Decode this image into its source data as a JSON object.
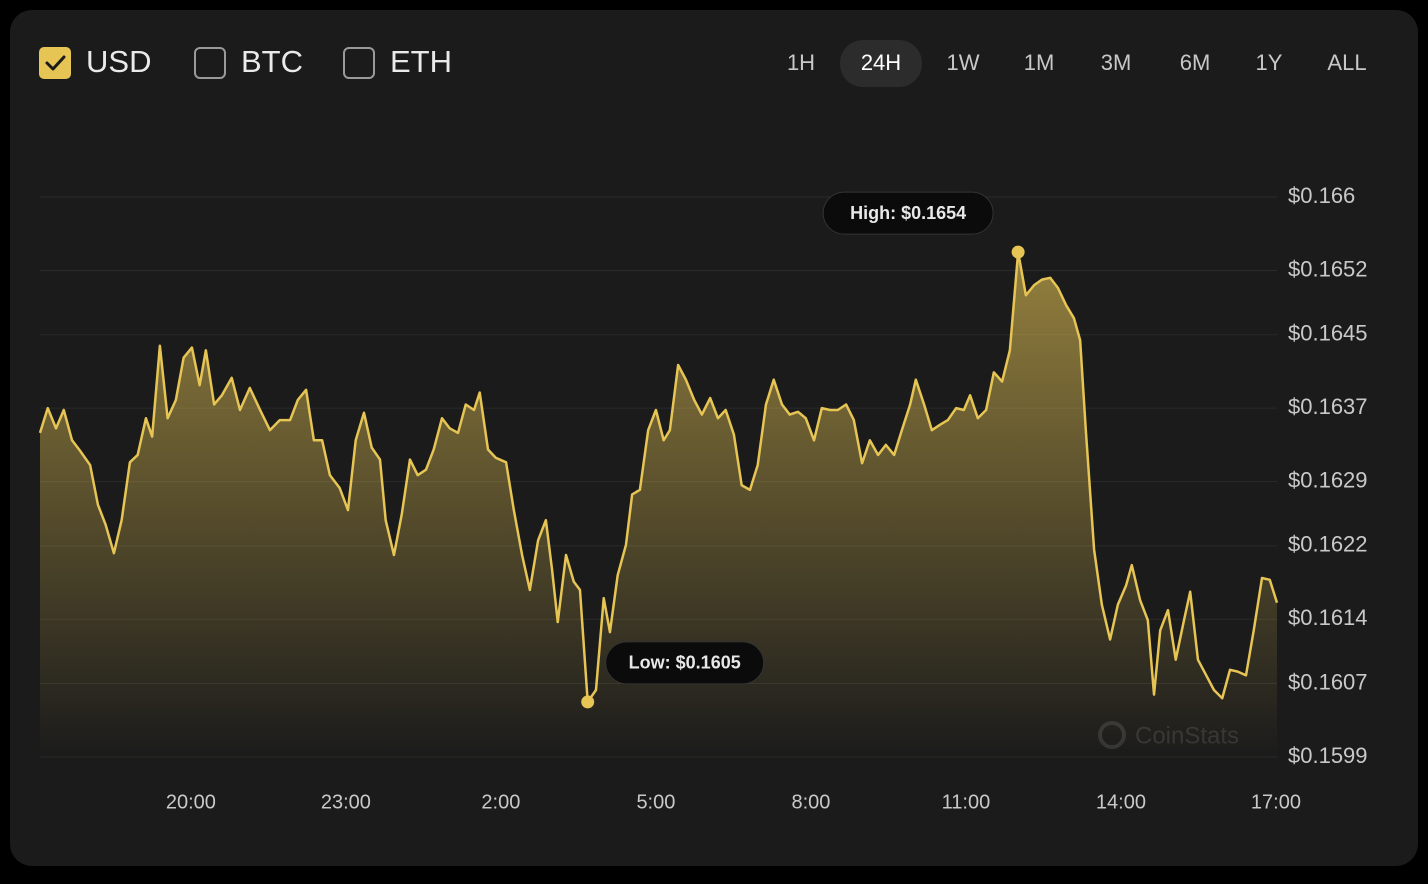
{
  "controls": {
    "currencies": [
      {
        "label": "USD",
        "checked": true
      },
      {
        "label": "BTC",
        "checked": false
      },
      {
        "label": "ETH",
        "checked": false
      }
    ],
    "timeframes": [
      {
        "label": "1H",
        "selected": false
      },
      {
        "label": "24H",
        "selected": true
      },
      {
        "label": "1W",
        "selected": false
      },
      {
        "label": "1M",
        "selected": false
      },
      {
        "label": "3M",
        "selected": false
      },
      {
        "label": "6M",
        "selected": false
      },
      {
        "label": "1Y",
        "selected": false
      },
      {
        "label": "ALL",
        "selected": false
      }
    ]
  },
  "chart_data": {
    "type": "area",
    "watermark": "CoinStats",
    "color": "#e6c555",
    "grid": true,
    "xlim": [
      17.08,
      41.02
    ],
    "ylim": [
      0.1599,
      0.166
    ],
    "xticks": [
      {
        "value": 20,
        "label": "20:00"
      },
      {
        "value": 23,
        "label": "23:00"
      },
      {
        "value": 26,
        "label": "2:00"
      },
      {
        "value": 29,
        "label": "5:00"
      },
      {
        "value": 32,
        "label": "8:00"
      },
      {
        "value": 35,
        "label": "11:00"
      },
      {
        "value": 38,
        "label": "14:00"
      },
      {
        "value": 41,
        "label": "17:00"
      }
    ],
    "yticks": [
      {
        "value": 0.166,
        "label": "$0.166"
      },
      {
        "value": 0.1652,
        "label": "$0.1652"
      },
      {
        "value": 0.1645,
        "label": "$0.1645"
      },
      {
        "value": 0.1637,
        "label": "$0.1637"
      },
      {
        "value": 0.1629,
        "label": "$0.1629"
      },
      {
        "value": 0.1622,
        "label": "$0.1622"
      },
      {
        "value": 0.1614,
        "label": "$0.1614"
      },
      {
        "value": 0.1607,
        "label": "$0.1607"
      },
      {
        "value": 0.1599,
        "label": "$0.1599"
      }
    ],
    "x": [
      17.08,
      17.23,
      17.39,
      17.54,
      17.7,
      17.85,
      18.05,
      18.2,
      18.35,
      18.51,
      18.66,
      18.82,
      18.97,
      19.13,
      19.25,
      19.4,
      19.55,
      19.71,
      19.86,
      20.02,
      20.17,
      20.29,
      20.45,
      20.6,
      20.79,
      20.95,
      21.14,
      21.34,
      21.53,
      21.72,
      21.92,
      22.07,
      22.23,
      22.38,
      22.54,
      22.69,
      22.88,
      23.04,
      23.19,
      23.35,
      23.5,
      23.66,
      23.77,
      23.93,
      24.08,
      24.24,
      24.39,
      24.55,
      24.7,
      24.86,
      25.01,
      25.17,
      25.32,
      25.48,
      25.59,
      25.75,
      25.9,
      26.1,
      26.25,
      26.41,
      26.56,
      26.72,
      26.87,
      26.99,
      27.1,
      27.26,
      27.41,
      27.53,
      27.68,
      27.84,
      27.99,
      28.11,
      28.26,
      28.42,
      28.54,
      28.69,
      28.85,
      29.0,
      29.15,
      29.27,
      29.43,
      29.58,
      29.74,
      29.89,
      30.05,
      30.2,
      30.35,
      30.51,
      30.66,
      30.82,
      30.97,
      31.13,
      31.28,
      31.44,
      31.59,
      31.75,
      31.9,
      32.06,
      32.21,
      32.37,
      32.52,
      32.68,
      32.83,
      32.99,
      33.14,
      33.3,
      33.45,
      33.61,
      33.76,
      33.92,
      34.03,
      34.19,
      34.34,
      34.5,
      34.65,
      34.81,
      34.96,
      35.08,
      35.23,
      35.39,
      35.54,
      35.7,
      35.85,
      36.01,
      36.16,
      36.32,
      36.47,
      36.63,
      36.78,
      36.94,
      37.09,
      37.21,
      37.32,
      37.48,
      37.63,
      37.79,
      37.94,
      38.1,
      38.21,
      38.37,
      38.52,
      38.64,
      38.76,
      38.91,
      39.06,
      39.22,
      39.34,
      39.49,
      39.65,
      39.8,
      39.96,
      40.11,
      40.26,
      40.42,
      40.57,
      40.73,
      40.88,
      41.02
    ],
    "values": [
      0.16343,
      0.1637,
      0.16348,
      0.16368,
      0.16335,
      0.16324,
      0.16308,
      0.16265,
      0.16243,
      0.16212,
      0.16248,
      0.16311,
      0.16319,
      0.16359,
      0.16339,
      0.16438,
      0.16359,
      0.16379,
      0.16425,
      0.16436,
      0.16395,
      0.16433,
      0.16374,
      0.16384,
      0.16403,
      0.16368,
      0.16392,
      0.16368,
      0.16346,
      0.16357,
      0.16357,
      0.16379,
      0.1639,
      0.16335,
      0.16335,
      0.16297,
      0.16283,
      0.16259,
      0.16335,
      0.16365,
      0.16327,
      0.16314,
      0.16248,
      0.1621,
      0.16254,
      0.16314,
      0.16297,
      0.16303,
      0.16325,
      0.16359,
      0.16348,
      0.16343,
      0.16374,
      0.16368,
      0.16387,
      0.16325,
      0.16316,
      0.16311,
      0.16259,
      0.1621,
      0.16172,
      0.16226,
      0.16248,
      0.16194,
      0.16137,
      0.1621,
      0.16181,
      0.16172,
      0.1605,
      0.16063,
      0.16163,
      0.16126,
      0.16188,
      0.16221,
      0.16276,
      0.16281,
      0.16346,
      0.16368,
      0.16335,
      0.16346,
      0.16417,
      0.16401,
      0.16379,
      0.16363,
      0.16381,
      0.16359,
      0.16368,
      0.16341,
      0.16286,
      0.16281,
      0.16308,
      0.16374,
      0.16401,
      0.16374,
      0.16363,
      0.16366,
      0.16359,
      0.16335,
      0.1637,
      0.16368,
      0.16368,
      0.16374,
      0.16357,
      0.1631,
      0.16335,
      0.16319,
      0.1633,
      0.16319,
      0.16346,
      0.16374,
      0.16401,
      0.16374,
      0.16346,
      0.16352,
      0.16357,
      0.1637,
      0.16368,
      0.16384,
      0.16359,
      0.16368,
      0.16409,
      0.16399,
      0.16433,
      0.1654,
      0.16493,
      0.16504,
      0.1651,
      0.16512,
      0.16501,
      0.16482,
      0.16468,
      0.16444,
      0.16346,
      0.16216,
      0.16156,
      0.16118,
      0.16156,
      0.16177,
      0.16199,
      0.16161,
      0.16139,
      0.16058,
      0.16128,
      0.1615,
      0.16096,
      0.16139,
      0.1617,
      0.16096,
      0.16079,
      0.16063,
      0.16054,
      0.16085,
      0.16083,
      0.16079,
      0.16128,
      0.16185,
      0.16183,
      0.16158
    ],
    "annotations": [
      {
        "label": "High: $0.1654",
        "x": 36.01,
        "y": 0.1654
      },
      {
        "label": "Low: $0.1605",
        "x": 27.68,
        "y": 0.1605
      }
    ]
  }
}
